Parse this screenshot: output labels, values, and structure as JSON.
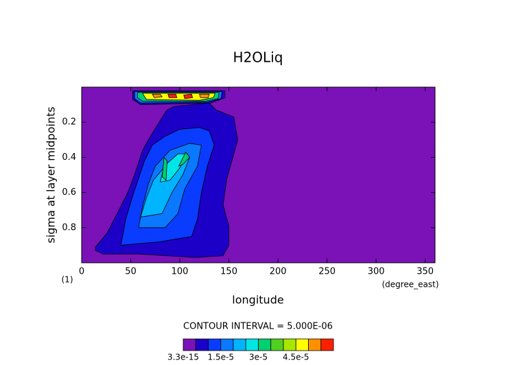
{
  "chart_data": {
    "type": "contour",
    "title": "H2OLiq",
    "x_label": "longitude",
    "y_label": "sigma at layer midpoints",
    "x_unit": "(degree_east)",
    "y_unit": "(1)",
    "annotation": "CONTOUR INTERVAL = 5.000E-06",
    "xlim": [
      0,
      360
    ],
    "ylim": [
      1,
      0
    ],
    "xticks": [
      0,
      50,
      100,
      150,
      200,
      250,
      300,
      350
    ],
    "yticks": [
      0.2,
      0.4,
      0.6,
      0.8
    ],
    "levels": [
      3.3e-15,
      5e-06,
      1e-05,
      1.5e-05,
      2e-05,
      2.5e-05,
      3e-05,
      3.5e-05,
      4e-05,
      4.5e-05,
      5e-05,
      5.5e-05,
      6e-05
    ],
    "colors": [
      "#7a12b8",
      "#1c00c8",
      "#0a3cff",
      "#0a78ff",
      "#00b4ff",
      "#00e6e6",
      "#00d070",
      "#50d020",
      "#a8e800",
      "#ffff00",
      "#ff9000",
      "#ff2000"
    ],
    "colorbar_ticks": [
      {
        "value": 3.3e-15,
        "label": "3.3e-15"
      },
      {
        "value": 1.5e-05,
        "label": "1.5e-5"
      },
      {
        "value": 3e-05,
        "label": "3e-5"
      },
      {
        "value": 4.5e-05,
        "label": "4.5e-5"
      }
    ],
    "regions": [
      {
        "value": 5e-06,
        "points": [
          [
            14,
            0.91
          ],
          [
            26,
            0.83
          ],
          [
            37,
            0.71
          ],
          [
            47,
            0.6
          ],
          [
            55,
            0.48
          ],
          [
            62,
            0.36
          ],
          [
            69,
            0.29
          ],
          [
            80,
            0.19
          ],
          [
            87,
            0.13
          ],
          [
            94,
            0.11
          ],
          [
            130,
            0.09
          ],
          [
            137,
            0.13
          ],
          [
            155,
            0.17
          ],
          [
            159,
            0.3
          ],
          [
            152,
            0.44
          ],
          [
            148,
            0.52
          ],
          [
            144,
            0.67
          ],
          [
            150,
            0.79
          ],
          [
            150,
            0.9
          ],
          [
            144,
            0.96
          ],
          [
            116,
            0.97
          ],
          [
            58,
            0.95
          ],
          [
            22,
            0.95
          ],
          [
            14,
            0.93
          ]
        ]
      },
      {
        "value": 1e-05,
        "points": [
          [
            40,
            0.9
          ],
          [
            45,
            0.75
          ],
          [
            52,
            0.62
          ],
          [
            58,
            0.52
          ],
          [
            64,
            0.42
          ],
          [
            72,
            0.33
          ],
          [
            85,
            0.28
          ],
          [
            100,
            0.24
          ],
          [
            120,
            0.23
          ],
          [
            130,
            0.25
          ],
          [
            135,
            0.33
          ],
          [
            128,
            0.45
          ],
          [
            122,
            0.6
          ],
          [
            118,
            0.75
          ],
          [
            112,
            0.85
          ],
          [
            80,
            0.88
          ]
        ]
      },
      {
        "value": 1.5e-05,
        "points": [
          [
            58,
            0.8
          ],
          [
            62,
            0.68
          ],
          [
            68,
            0.55
          ],
          [
            75,
            0.45
          ],
          [
            90,
            0.36
          ],
          [
            110,
            0.32
          ],
          [
            122,
            0.33
          ],
          [
            118,
            0.45
          ],
          [
            105,
            0.58
          ],
          [
            98,
            0.72
          ],
          [
            85,
            0.8
          ]
        ]
      },
      {
        "value": 2e-05,
        "points": [
          [
            60,
            0.74
          ],
          [
            66,
            0.63
          ],
          [
            73,
            0.53
          ],
          [
            85,
            0.45
          ],
          [
            100,
            0.4
          ],
          [
            110,
            0.4
          ],
          [
            103,
            0.5
          ],
          [
            92,
            0.6
          ],
          [
            82,
            0.72
          ]
        ]
      },
      {
        "value": 2.5e-05,
        "points": [
          [
            80,
            0.54
          ],
          [
            84,
            0.45
          ],
          [
            98,
            0.38
          ],
          [
            108,
            0.38
          ],
          [
            100,
            0.46
          ],
          [
            90,
            0.53
          ]
        ]
      },
      {
        "value": 3e-05,
        "points": [
          [
            82,
            0.51
          ],
          [
            84,
            0.4
          ],
          [
            87,
            0.42
          ],
          [
            86,
            0.53
          ]
        ]
      },
      {
        "value": 3e-05,
        "points": [
          [
            99,
            0.45
          ],
          [
            106,
            0.37
          ],
          [
            110,
            0.4
          ],
          [
            103,
            0.44
          ]
        ]
      },
      {
        "value": 5e-06,
        "points": [
          [
            52,
            0.02
          ],
          [
            146,
            0.02
          ],
          [
            146,
            0.06
          ],
          [
            132,
            0.09
          ],
          [
            60,
            0.1
          ],
          [
            52,
            0.07
          ]
        ]
      },
      {
        "value": 1.5e-05,
        "points": [
          [
            54,
            0.025
          ],
          [
            143,
            0.025
          ],
          [
            142,
            0.065
          ],
          [
            128,
            0.085
          ],
          [
            60,
            0.09
          ],
          [
            54,
            0.065
          ]
        ]
      },
      {
        "value": 3e-05,
        "points": [
          [
            57,
            0.03
          ],
          [
            140,
            0.03
          ],
          [
            139,
            0.065
          ],
          [
            126,
            0.08
          ],
          [
            62,
            0.08
          ],
          [
            57,
            0.06
          ]
        ]
      },
      {
        "value": 4.5e-05,
        "points": [
          [
            62,
            0.035
          ],
          [
            136,
            0.035
          ],
          [
            134,
            0.06
          ],
          [
            120,
            0.075
          ],
          [
            66,
            0.07
          ]
        ]
      },
      {
        "value": 5e-05,
        "points": [
          [
            72,
            0.04
          ],
          [
            80,
            0.04
          ],
          [
            82,
            0.055
          ],
          [
            74,
            0.06
          ]
        ]
      },
      {
        "value": 5.5e-05,
        "points": [
          [
            88,
            0.04
          ],
          [
            96,
            0.04
          ],
          [
            97,
            0.06
          ],
          [
            89,
            0.06
          ]
        ]
      },
      {
        "value": 5.5e-05,
        "points": [
          [
            104,
            0.045
          ],
          [
            112,
            0.04
          ],
          [
            113,
            0.06
          ],
          [
            105,
            0.065
          ]
        ]
      },
      {
        "value": 5e-05,
        "points": [
          [
            120,
            0.04
          ],
          [
            130,
            0.04
          ],
          [
            129,
            0.06
          ],
          [
            121,
            0.06
          ]
        ]
      }
    ]
  }
}
